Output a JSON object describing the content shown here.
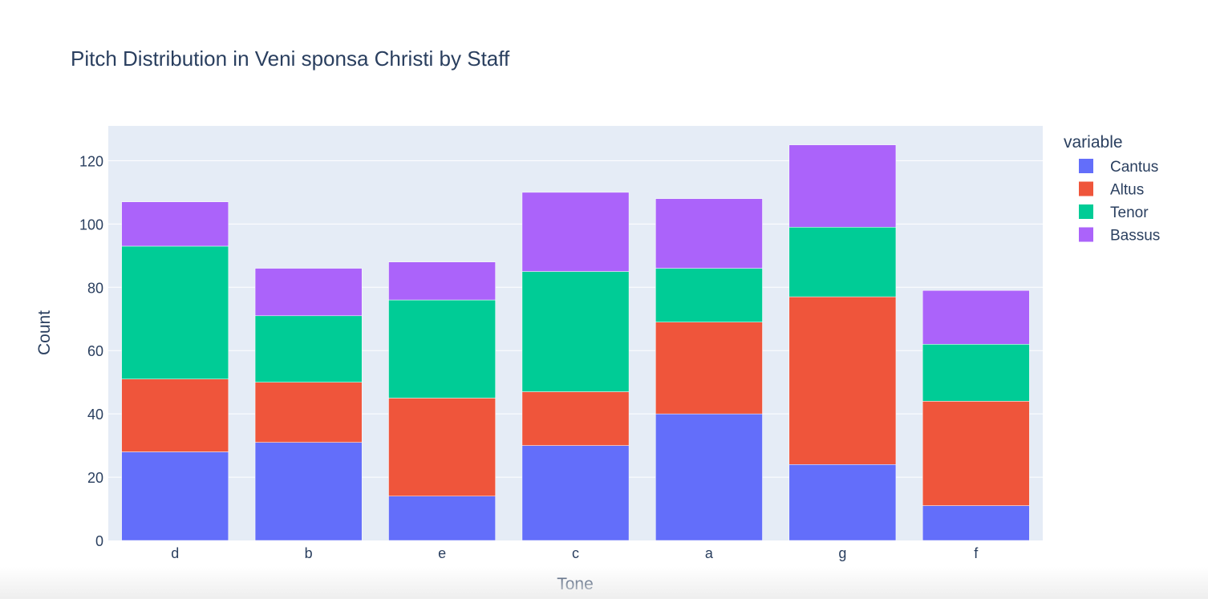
{
  "chart_data": {
    "type": "bar",
    "stacked": true,
    "title": "Pitch Distribution in Veni sponsa Christi by Staff",
    "xlabel": "Tone",
    "ylabel": "Count",
    "legend_title": "variable",
    "legend_position": "top-right",
    "grid": true,
    "ylim": [
      0,
      131
    ],
    "yticks": [
      0,
      20,
      40,
      60,
      80,
      100,
      120
    ],
    "categories": [
      "d",
      "b",
      "e",
      "c",
      "a",
      "g",
      "f"
    ],
    "series": [
      {
        "name": "Cantus",
        "color": "#636efa",
        "values": [
          28,
          31,
          14,
          30,
          40,
          24,
          11
        ]
      },
      {
        "name": "Altus",
        "color": "#ef553b",
        "values": [
          23,
          19,
          31,
          17,
          29,
          53,
          33
        ]
      },
      {
        "name": "Tenor",
        "color": "#00cc96",
        "values": [
          42,
          21,
          31,
          38,
          17,
          22,
          18
        ]
      },
      {
        "name": "Bassus",
        "color": "#ab63fa",
        "values": [
          14,
          15,
          12,
          25,
          22,
          26,
          17
        ]
      }
    ]
  }
}
